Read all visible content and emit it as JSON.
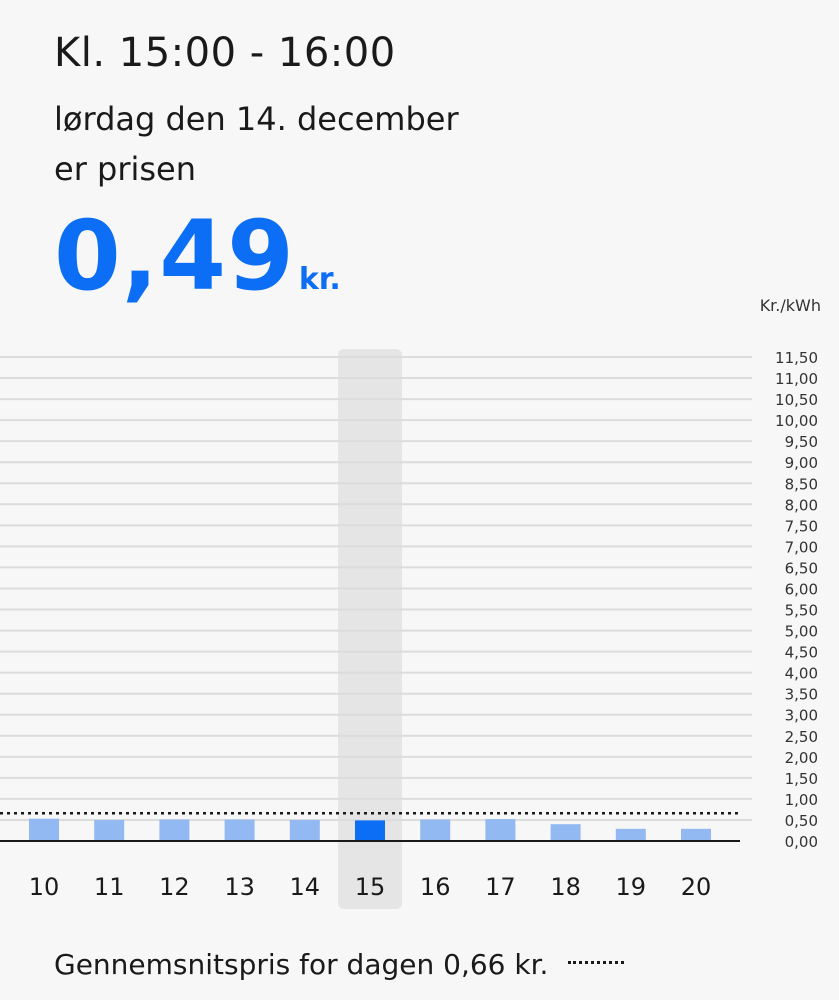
{
  "header": {
    "time_range": "Kl. 15:00 - 16:00",
    "date": "lørdag den 14. december",
    "subtitle": "er prisen",
    "price_value": "0,49",
    "price_unit": "kr."
  },
  "colors": {
    "accent": "#0b6ef5",
    "bar": "#93b9f3",
    "bar_selected": "#0b6ef5",
    "highlight": "#e5e5e5"
  },
  "chart_data": {
    "type": "bar",
    "ylabel": "Kr./kWh",
    "categories": [
      "10",
      "11",
      "12",
      "13",
      "14",
      "15",
      "16",
      "17",
      "18",
      "19",
      "20"
    ],
    "values": [
      0.53,
      0.5,
      0.51,
      0.51,
      0.5,
      0.49,
      0.51,
      0.52,
      0.4,
      0.29,
      0.29
    ],
    "selected_index": 5,
    "average": 0.66,
    "ylim": [
      0,
      11.5
    ],
    "yticks": [
      "0,00",
      "0,50",
      "1,00",
      "1,50",
      "2,00",
      "2,50",
      "3,00",
      "3,50",
      "4,00",
      "4,50",
      "5,00",
      "5,50",
      "6,00",
      "6,50",
      "7,00",
      "7,50",
      "8,00",
      "8,50",
      "9,00",
      "9,50",
      "10,00",
      "10,50",
      "11,00",
      "11,50"
    ],
    "grid": true
  },
  "legend": {
    "text": "Gennemsnitspris for dagen 0,66 kr."
  }
}
